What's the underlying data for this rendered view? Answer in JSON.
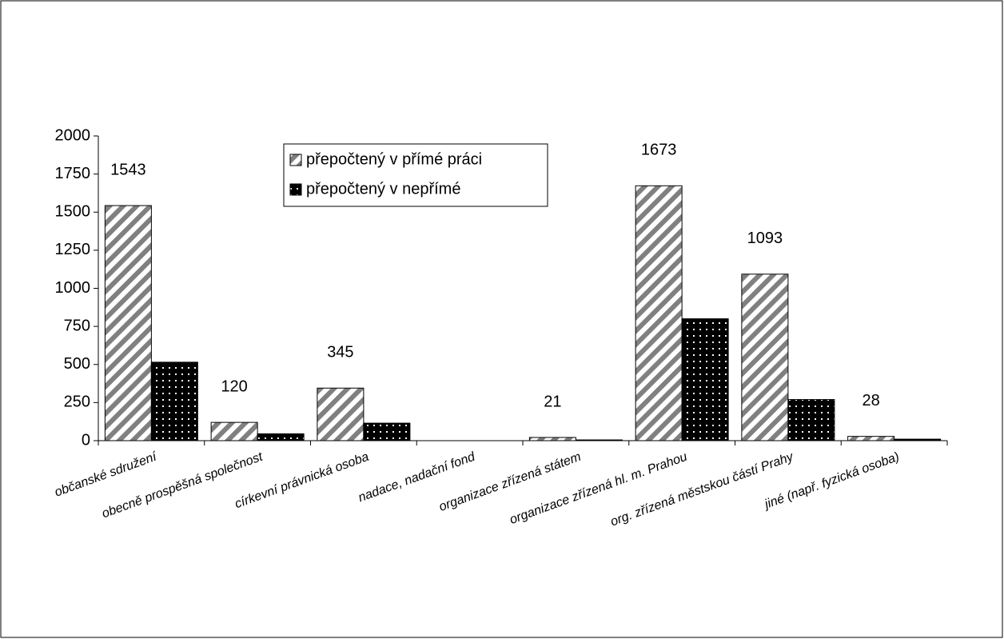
{
  "chart_data": {
    "type": "bar",
    "categories": [
      "občanské sdružení",
      "obecně prospěšná společnost",
      "církevní právnická osoba",
      "nadace, nadační fond",
      "organizace zřízená státem",
      "organizace zřízená hl. m. Prahou",
      "org. zřízená městskou částí Prahy",
      "jiné (např. fyzická osoba)"
    ],
    "series": [
      {
        "name": "přepočtený v přímé práci",
        "color": "#808080",
        "pattern": "diagonal",
        "data_labels": true,
        "values": [
          1543,
          120,
          345,
          0,
          21,
          1673,
          1093,
          28
        ]
      },
      {
        "name": "přepočtený v nepřímé",
        "color": "#000000",
        "pattern": "dots",
        "data_labels": false,
        "values": [
          515,
          45,
          115,
          0,
          5,
          800,
          270,
          10
        ]
      }
    ],
    "ylim": [
      0,
      2000
    ],
    "yticks": [
      0,
      250,
      500,
      750,
      1000,
      1250,
      1500,
      1750,
      2000
    ],
    "grid": false,
    "legend": "top"
  }
}
